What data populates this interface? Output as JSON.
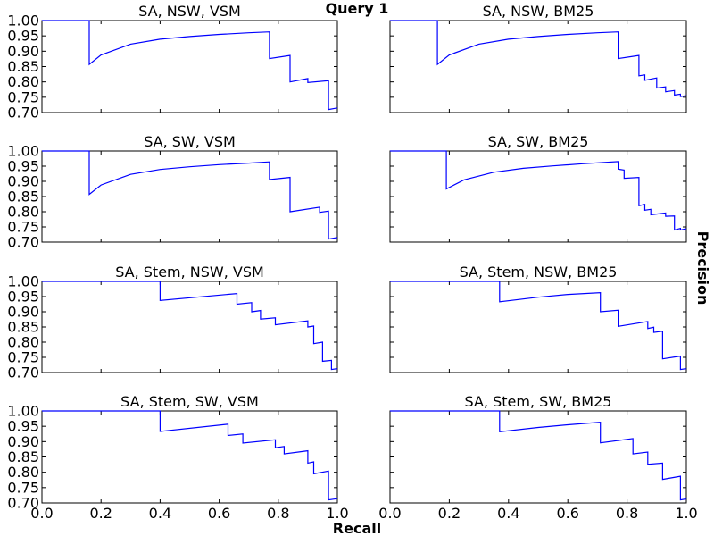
{
  "figure": {
    "suptitle": "Query 1",
    "xlabel": "Recall",
    "ylabel": "Precision"
  },
  "chart_data": [
    {
      "type": "line",
      "title": "SA, NSW, VSM",
      "xlim": [
        0,
        1
      ],
      "ylim": [
        0.7,
        1.0
      ],
      "xticks": [
        "0.0",
        "0.2",
        "0.4",
        "0.6",
        "0.8",
        "1.0"
      ],
      "yticks": [
        "0.70",
        "0.75",
        "0.80",
        "0.85",
        "0.90",
        "0.95",
        "1.00"
      ],
      "series": [
        {
          "color": "#0000ff",
          "x": [
            0,
            0.16,
            0.16,
            0.2,
            0.3,
            0.4,
            0.5,
            0.6,
            0.7,
            0.77,
            0.77,
            0.84,
            0.84,
            0.9,
            0.9,
            0.97,
            0.97,
            1.0
          ],
          "y": [
            1.0,
            1.0,
            0.857,
            0.888,
            0.923,
            0.939,
            0.948,
            0.955,
            0.96,
            0.963,
            0.876,
            0.886,
            0.8,
            0.811,
            0.798,
            0.804,
            0.71,
            0.715
          ]
        }
      ]
    },
    {
      "type": "line",
      "title": "SA, NSW, BM25",
      "xlim": [
        0,
        1
      ],
      "ylim": [
        0.7,
        1.0
      ],
      "xticks": [
        "0.0",
        "0.2",
        "0.4",
        "0.6",
        "0.8",
        "1.0"
      ],
      "yticks": [
        "0.70",
        "0.75",
        "0.80",
        "0.85",
        "0.90",
        "0.95",
        "1.00"
      ],
      "series": [
        {
          "color": "#0000ff",
          "x": [
            0,
            0.16,
            0.16,
            0.2,
            0.3,
            0.4,
            0.5,
            0.6,
            0.7,
            0.77,
            0.77,
            0.84,
            0.84,
            0.86,
            0.86,
            0.9,
            0.9,
            0.93,
            0.93,
            0.96,
            0.96,
            0.98,
            0.98,
            1.0
          ],
          "y": [
            1.0,
            1.0,
            0.857,
            0.888,
            0.923,
            0.939,
            0.948,
            0.955,
            0.96,
            0.963,
            0.876,
            0.886,
            0.82,
            0.823,
            0.805,
            0.813,
            0.78,
            0.784,
            0.768,
            0.772,
            0.757,
            0.76,
            0.752,
            0.755
          ]
        }
      ]
    },
    {
      "type": "line",
      "title": "SA, SW, VSM",
      "xlim": [
        0,
        1
      ],
      "ylim": [
        0.7,
        1.0
      ],
      "xticks": [
        "0.0",
        "0.2",
        "0.4",
        "0.6",
        "0.8",
        "1.0"
      ],
      "yticks": [
        "0.70",
        "0.75",
        "0.80",
        "0.85",
        "0.90",
        "0.95",
        "1.00"
      ],
      "series": [
        {
          "color": "#0000ff",
          "x": [
            0,
            0.16,
            0.16,
            0.2,
            0.3,
            0.4,
            0.5,
            0.6,
            0.7,
            0.77,
            0.77,
            0.84,
            0.84,
            0.94,
            0.94,
            0.97,
            0.97,
            1.0
          ],
          "y": [
            1.0,
            1.0,
            0.857,
            0.888,
            0.923,
            0.939,
            0.948,
            0.955,
            0.96,
            0.964,
            0.906,
            0.913,
            0.8,
            0.815,
            0.798,
            0.802,
            0.71,
            0.715
          ]
        }
      ]
    },
    {
      "type": "line",
      "title": "SA, SW, BM25",
      "xlim": [
        0,
        1
      ],
      "ylim": [
        0.7,
        1.0
      ],
      "xticks": [
        "0.0",
        "0.2",
        "0.4",
        "0.6",
        "0.8",
        "1.0"
      ],
      "yticks": [
        "0.70",
        "0.75",
        "0.80",
        "0.85",
        "0.90",
        "0.95",
        "1.00"
      ],
      "series": [
        {
          "color": "#0000ff",
          "x": [
            0,
            0.19,
            0.19,
            0.25,
            0.35,
            0.45,
            0.55,
            0.65,
            0.77,
            0.77,
            0.79,
            0.79,
            0.84,
            0.84,
            0.86,
            0.86,
            0.88,
            0.88,
            0.93,
            0.93,
            0.96,
            0.96,
            0.98,
            0.98,
            1.0
          ],
          "y": [
            1.0,
            1.0,
            0.875,
            0.905,
            0.93,
            0.943,
            0.951,
            0.958,
            0.965,
            0.94,
            0.937,
            0.91,
            0.913,
            0.82,
            0.824,
            0.805,
            0.808,
            0.79,
            0.796,
            0.785,
            0.786,
            0.74,
            0.745,
            0.74,
            0.744
          ]
        }
      ]
    },
    {
      "type": "line",
      "title": "SA, Stem, NSW, VSM",
      "xlim": [
        0,
        1
      ],
      "ylim": [
        0.7,
        1.0
      ],
      "xticks": [
        "0.0",
        "0.2",
        "0.4",
        "0.6",
        "0.8",
        "1.0"
      ],
      "yticks": [
        "0.70",
        "0.75",
        "0.80",
        "0.85",
        "0.90",
        "0.95",
        "1.00"
      ],
      "series": [
        {
          "color": "#0000ff",
          "x": [
            0,
            0.4,
            0.4,
            0.66,
            0.66,
            0.71,
            0.71,
            0.74,
            0.74,
            0.79,
            0.79,
            0.9,
            0.9,
            0.92,
            0.92,
            0.95,
            0.95,
            0.98,
            0.98,
            1.0
          ],
          "y": [
            1.0,
            1.0,
            0.937,
            0.96,
            0.925,
            0.93,
            0.9,
            0.904,
            0.876,
            0.88,
            0.857,
            0.87,
            0.85,
            0.853,
            0.795,
            0.8,
            0.737,
            0.74,
            0.71,
            0.713
          ]
        }
      ]
    },
    {
      "type": "line",
      "title": "SA, Stem, NSW, BM25",
      "xlim": [
        0,
        1
      ],
      "ylim": [
        0.7,
        1.0
      ],
      "xticks": [
        "0.0",
        "0.2",
        "0.4",
        "0.6",
        "0.8",
        "1.0"
      ],
      "yticks": [
        "0.70",
        "0.75",
        "0.80",
        "0.85",
        "0.90",
        "0.95",
        "1.00"
      ],
      "series": [
        {
          "color": "#0000ff",
          "x": [
            0,
            0.37,
            0.37,
            0.5,
            0.6,
            0.71,
            0.71,
            0.77,
            0.77,
            0.87,
            0.87,
            0.89,
            0.89,
            0.92,
            0.92,
            0.98,
            0.98,
            1.0
          ],
          "y": [
            1.0,
            1.0,
            0.933,
            0.948,
            0.957,
            0.963,
            0.9,
            0.905,
            0.852,
            0.868,
            0.845,
            0.849,
            0.832,
            0.836,
            0.745,
            0.754,
            0.71,
            0.713
          ]
        }
      ]
    },
    {
      "type": "line",
      "title": "SA, Stem, SW, VSM",
      "xlim": [
        0,
        1
      ],
      "ylim": [
        0.7,
        1.0
      ],
      "xticks": [
        "0.0",
        "0.2",
        "0.4",
        "0.6",
        "0.8",
        "1.0"
      ],
      "yticks": [
        "0.70",
        "0.75",
        "0.80",
        "0.85",
        "0.90",
        "0.95",
        "1.00"
      ],
      "series": [
        {
          "color": "#0000ff",
          "x": [
            0,
            0.4,
            0.4,
            0.63,
            0.63,
            0.68,
            0.68,
            0.79,
            0.79,
            0.82,
            0.82,
            0.9,
            0.9,
            0.92,
            0.92,
            0.97,
            0.97,
            1.0
          ],
          "y": [
            1.0,
            1.0,
            0.933,
            0.957,
            0.92,
            0.925,
            0.895,
            0.906,
            0.88,
            0.884,
            0.86,
            0.87,
            0.83,
            0.834,
            0.795,
            0.804,
            0.71,
            0.714
          ]
        }
      ]
    },
    {
      "type": "line",
      "title": "SA, Stem, SW, BM25",
      "xlim": [
        0,
        1
      ],
      "ylim": [
        0.7,
        1.0
      ],
      "xticks": [
        "0.0",
        "0.2",
        "0.4",
        "0.6",
        "0.8",
        "1.0"
      ],
      "yticks": [
        "0.70",
        "0.75",
        "0.80",
        "0.85",
        "0.90",
        "0.95",
        "1.00"
      ],
      "series": [
        {
          "color": "#0000ff",
          "x": [
            0,
            0.37,
            0.37,
            0.5,
            0.6,
            0.71,
            0.71,
            0.82,
            0.82,
            0.87,
            0.87,
            0.92,
            0.92,
            0.98,
            0.98,
            1.0
          ],
          "y": [
            1.0,
            1.0,
            0.932,
            0.946,
            0.955,
            0.963,
            0.896,
            0.91,
            0.86,
            0.866,
            0.826,
            0.83,
            0.777,
            0.787,
            0.71,
            0.713
          ]
        }
      ]
    }
  ]
}
